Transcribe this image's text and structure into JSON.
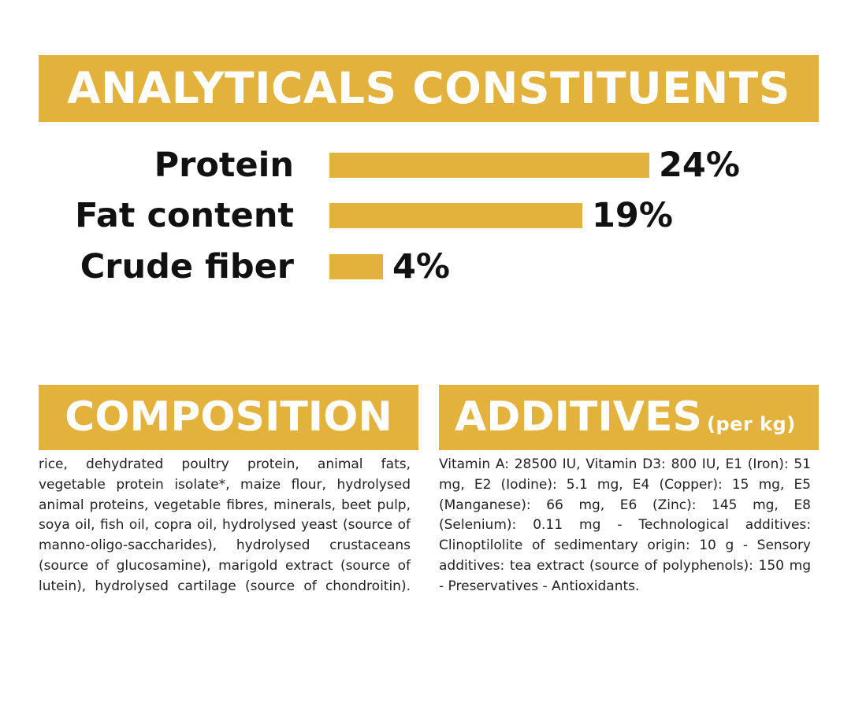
{
  "header": {
    "title": "ANALYTICALS CONSTITUENTS"
  },
  "chart_data": {
    "type": "bar",
    "orientation": "horizontal",
    "categories": [
      "Protein",
      "Fat content",
      "Crude fiber"
    ],
    "values": [
      24,
      19,
      4
    ],
    "value_labels": [
      "24%",
      "19%",
      "4%"
    ],
    "unit": "%",
    "grid": false,
    "bar_color": "#e3b23c"
  },
  "composition": {
    "title": "COMPOSITION",
    "text": "rice, dehydrated poultry protein, animal fats, vegetable protein isolate*, maize flour, hydrolysed animal proteins, vegetable fibres, minerals, beet pulp, soya oil, fish oil, copra oil, hydrolysed yeast (source of manno-oligo-saccharides), hydrolysed crustaceans (source of glucosamine), marigold extract (source of lutein), hydrolysed cartilage (source of chondroitin)."
  },
  "additives": {
    "title": "ADDITIVES",
    "subtitle": "(per kg)",
    "text": "Vitamin A: 28500 IU, Vitamin D3: 800 IU, E1 (Iron): 51 mg, E2 (Iodine): 5.1 mg, E4 (Copper): 15 mg, E5 (Manganese): 66 mg, E6 (Zinc): 145 mg, E8 (Selenium): 0.11 mg - Technological additives: Clinoptilolite of sedimentary origin: 10 g - Sensory additives: tea extract (source of polyphenols): 150 mg - Preservatives - Antioxidants."
  },
  "colors": {
    "accent": "#e3b23c",
    "text": "#111111",
    "banner_text": "#ffffff"
  }
}
